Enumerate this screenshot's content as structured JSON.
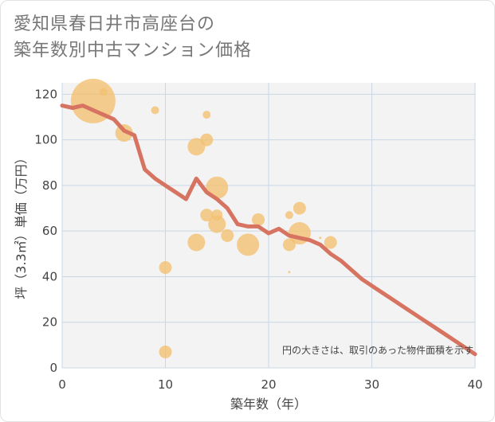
{
  "title": {
    "line1": "愛知県春日井市高座台の",
    "line2": "築年数別中古マンション価格"
  },
  "colors": {
    "background": "#ffffff",
    "plot_background": "#f3f3f3",
    "grid": "#c9d7e6",
    "bubble": "#f3c072",
    "line": "#d77361"
  },
  "chart_data": {
    "type": "scatter",
    "xlabel": "築年数（年）",
    "ylabel": "坪（3.3㎡）単価（万円）",
    "xlim": [
      0,
      40
    ],
    "ylim": [
      0,
      125
    ],
    "xticks": [
      0,
      10,
      20,
      30,
      40
    ],
    "yticks": [
      0,
      20,
      40,
      60,
      80,
      100,
      120
    ],
    "grid": true,
    "annotation": "円の大きさは、取引のあった物件面積を示す",
    "bubbles": [
      {
        "x": 3,
        "y": 117,
        "size": 28
      },
      {
        "x": 4,
        "y": 121,
        "size": 5
      },
      {
        "x": 6,
        "y": 103,
        "size": 11
      },
      {
        "x": 9,
        "y": 113,
        "size": 5
      },
      {
        "x": 10,
        "y": 44,
        "size": 8
      },
      {
        "x": 10,
        "y": 7,
        "size": 8
      },
      {
        "x": 13,
        "y": 97,
        "size": 11
      },
      {
        "x": 13,
        "y": 55,
        "size": 11
      },
      {
        "x": 14,
        "y": 111,
        "size": 5
      },
      {
        "x": 14,
        "y": 100,
        "size": 8
      },
      {
        "x": 14,
        "y": 67,
        "size": 8
      },
      {
        "x": 15,
        "y": 79,
        "size": 14
      },
      {
        "x": 15,
        "y": 67,
        "size": 7
      },
      {
        "x": 15,
        "y": 63,
        "size": 11
      },
      {
        "x": 16,
        "y": 58,
        "size": 8
      },
      {
        "x": 18,
        "y": 54,
        "size": 14
      },
      {
        "x": 19,
        "y": 65,
        "size": 8
      },
      {
        "x": 22,
        "y": 67,
        "size": 5
      },
      {
        "x": 22,
        "y": 54,
        "size": 8
      },
      {
        "x": 22,
        "y": 42,
        "size": 1.5
      },
      {
        "x": 23,
        "y": 70,
        "size": 8
      },
      {
        "x": 23,
        "y": 59,
        "size": 14
      },
      {
        "x": 25,
        "y": 57,
        "size": 1.5
      },
      {
        "x": 26,
        "y": 55,
        "size": 8
      }
    ],
    "trend": {
      "x": [
        0,
        1,
        2,
        3,
        4,
        5,
        6,
        7,
        8,
        9,
        10,
        11,
        12,
        13,
        14,
        15,
        16,
        17,
        18,
        19,
        20,
        21,
        22,
        23,
        24,
        25,
        26,
        27,
        28,
        29,
        30,
        31,
        32,
        33,
        34,
        35,
        36,
        37,
        38,
        39,
        40
      ],
      "y": [
        115,
        114,
        115,
        113,
        111,
        109,
        104,
        102,
        87,
        83,
        80,
        77,
        74,
        83,
        77,
        74,
        70,
        63,
        62,
        62,
        59,
        61,
        58,
        57,
        56,
        54,
        50,
        47,
        43,
        39,
        36,
        33,
        30,
        27,
        24,
        21,
        18,
        15,
        12,
        9,
        6
      ]
    }
  }
}
